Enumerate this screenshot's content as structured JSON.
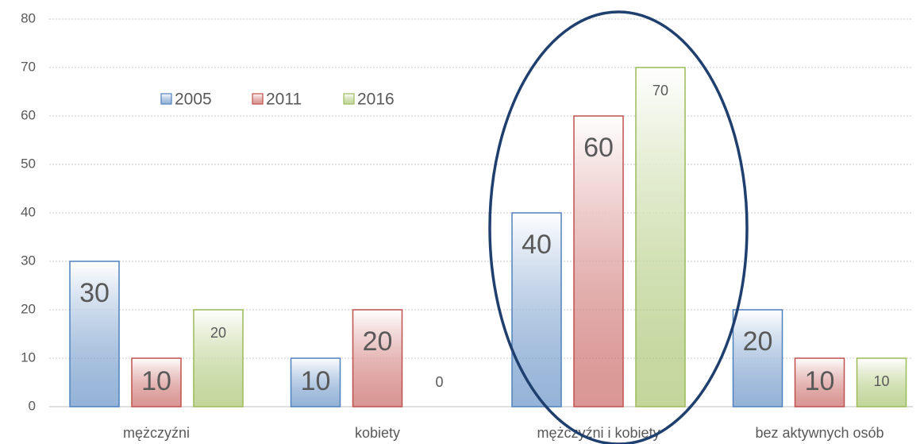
{
  "chart_data": {
    "type": "bar",
    "categories": [
      "mężczyźni",
      "kobiety",
      "mężczyźni i kobiety",
      "bez aktywnych osób"
    ],
    "series": [
      {
        "name": "2005",
        "color": "#4f81bd",
        "values": [
          30,
          10,
          40,
          20
        ]
      },
      {
        "name": "2011",
        "color": "#c0504d",
        "values": [
          10,
          20,
          60,
          10
        ]
      },
      {
        "name": "2016",
        "color": "#9bbb59",
        "values": [
          20,
          0,
          70,
          10
        ]
      }
    ],
    "ylim": [
      0,
      80
    ],
    "yticks": [
      0,
      10,
      20,
      30,
      40,
      50,
      60,
      70,
      80
    ],
    "grid": true
  }
}
